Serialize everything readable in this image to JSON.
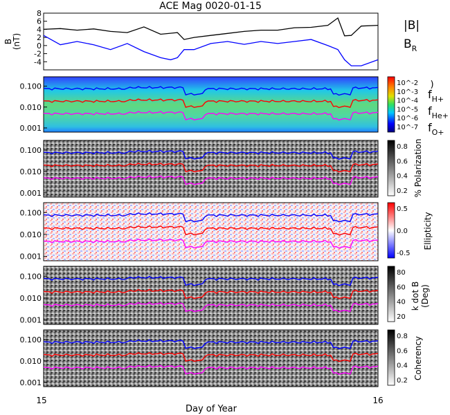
{
  "title": "ACE Mag 0020-01-15",
  "xlabel": "Day of Year",
  "x_ticks": [
    "15",
    "16"
  ],
  "chart_data": [
    {
      "type": "line",
      "ylabel": "B (nT)",
      "ylim": [
        -6,
        8
      ],
      "y_ticks": [
        -4,
        -2,
        0,
        2,
        4,
        6,
        8
      ],
      "series": [
        {
          "name": "|B|",
          "color": "#000000",
          "x": [
            0,
            0.05,
            0.1,
            0.15,
            0.2,
            0.25,
            0.3,
            0.35,
            0.4,
            0.42,
            0.45,
            0.5,
            0.55,
            0.6,
            0.65,
            0.7,
            0.75,
            0.8,
            0.85,
            0.88,
            0.9,
            0.92,
            0.95,
            1.0
          ],
          "y": [
            4,
            4.2,
            3.8,
            4.1,
            3.5,
            3.2,
            4.6,
            2.8,
            3.2,
            1.5,
            2,
            2.5,
            3,
            3.5,
            3.8,
            3.8,
            4.4,
            4.5,
            5,
            6.8,
            2.4,
            2.5,
            4.8,
            5
          ]
        },
        {
          "name": "B_R",
          "color": "#0000ff",
          "x": [
            0,
            0.05,
            0.1,
            0.15,
            0.2,
            0.25,
            0.3,
            0.35,
            0.38,
            0.4,
            0.42,
            0.45,
            0.5,
            0.55,
            0.6,
            0.65,
            0.7,
            0.75,
            0.8,
            0.85,
            0.88,
            0.9,
            0.92,
            0.95,
            1.0
          ],
          "y": [
            2.5,
            0.2,
            1,
            0.2,
            -1,
            0.5,
            -1.5,
            -3,
            -3.5,
            -3,
            -1,
            -1,
            0.5,
            1,
            0.3,
            1,
            0.5,
            1,
            1.5,
            0,
            -1,
            -3.5,
            -5,
            -5,
            -3.5
          ]
        }
      ]
    },
    {
      "type": "heatmap",
      "colorbar_ticks": [
        "10^-2",
        "10^-3",
        "10^-4",
        "10^-5",
        "10^-6",
        "10^-7"
      ],
      "colorbar_label": ")"
    },
    {
      "type": "heatmap",
      "colorbar_label": "% Polarization",
      "colorbar_ticks": [
        "0.8",
        "0.6",
        "0.4",
        "0.2"
      ]
    },
    {
      "type": "heatmap",
      "colorbar_label": "Ellipticity",
      "colorbar_ticks": [
        "0.5",
        "0.0",
        "-0.5"
      ]
    },
    {
      "type": "heatmap",
      "colorbar_label": "k dot B (Deg)",
      "colorbar_ticks": [
        "80",
        "60",
        "40",
        "20"
      ]
    },
    {
      "type": "heatmap",
      "colorbar_label": "Coherency",
      "colorbar_ticks": [
        "0.8",
        "0.6",
        "0.4",
        "0.2"
      ]
    }
  ],
  "freq_lines": {
    "y_ticks": [
      "0.100",
      "0.010",
      "0.001"
    ],
    "series": [
      {
        "name": "f_H+",
        "color": "#0000ff",
        "base": 0.075
      },
      {
        "name": "f_He+",
        "color": "#ff0000",
        "base": 0.019
      },
      {
        "name": "f_O+",
        "color": "#ff00ff",
        "base": 0.0048
      }
    ]
  },
  "legend": {
    "b_mag": "|B|",
    "b_r": "B",
    "b_r_sub": "R",
    "f_h": "f",
    "f_h_sub": "H+",
    "f_he": "f",
    "f_he_sub": "He+",
    "f_o": "f",
    "f_o_sub": "O+"
  },
  "colors": {
    "blue": "#0000ff",
    "red": "#ff0000",
    "magenta": "#ff00ff"
  }
}
